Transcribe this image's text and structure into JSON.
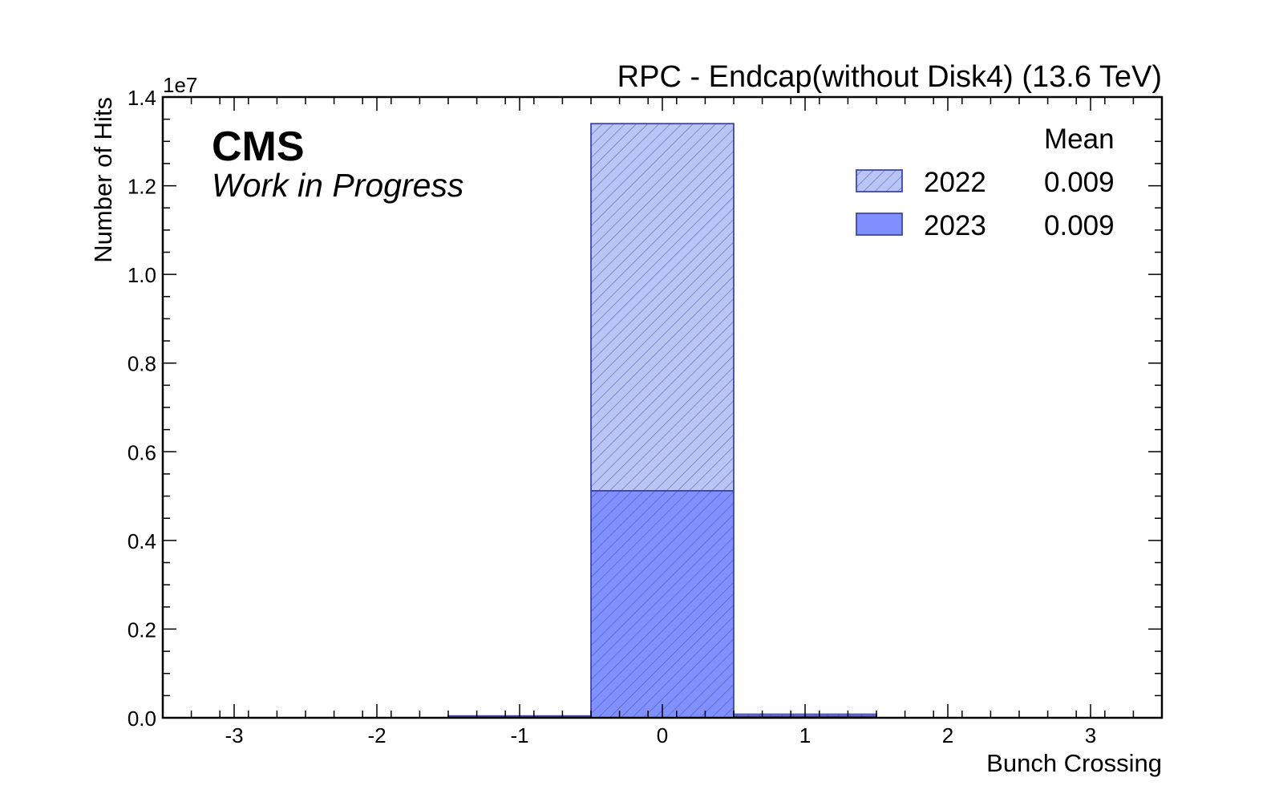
{
  "chart_data": {
    "type": "bar",
    "title": "RPC - Endcap(without Disk4) (13.6 TeV)",
    "experiment_label": "CMS",
    "status_label": "Work in Progress",
    "xlabel": "Bunch Crossing",
    "ylabel": "Number of Hits",
    "y_scale_label": "1e7",
    "xlim": [
      -3.5,
      3.5
    ],
    "ylim": [
      0,
      14000000
    ],
    "x_ticks": [
      -3,
      -2,
      -1,
      0,
      1,
      2,
      3
    ],
    "x_tick_labels": [
      "-3",
      "-2",
      "-1",
      "0",
      "1",
      "2",
      "3"
    ],
    "y_ticks": [
      0,
      2000000,
      4000000,
      6000000,
      8000000,
      10000000,
      12000000,
      14000000
    ],
    "y_tick_labels": [
      "0.0",
      "0.2",
      "0.4",
      "0.6",
      "0.8",
      "1.0",
      "1.2",
      "1.4"
    ],
    "bin_width": 1,
    "stacked": true,
    "grid": false,
    "legend_placement": "top-right",
    "legend_header": "Mean",
    "categories": [
      -3,
      -2,
      -1,
      0,
      1,
      2,
      3
    ],
    "series": [
      {
        "name": "2023",
        "mean": "0.009",
        "color": "#6a7cff",
        "fill_opacity": 0.85,
        "values": [
          0,
          0,
          15000,
          5120000,
          35000,
          0,
          0
        ]
      },
      {
        "name": "2022",
        "mean": "0.009",
        "color": "#8c9ef0",
        "fill_opacity": 0.6,
        "values": [
          0,
          0,
          25000,
          8280000,
          45000,
          0,
          0
        ]
      }
    ],
    "legend_order": [
      "2022",
      "2023"
    ],
    "edge_color": "#3c48a8",
    "hatch_color": "#3a4699"
  }
}
